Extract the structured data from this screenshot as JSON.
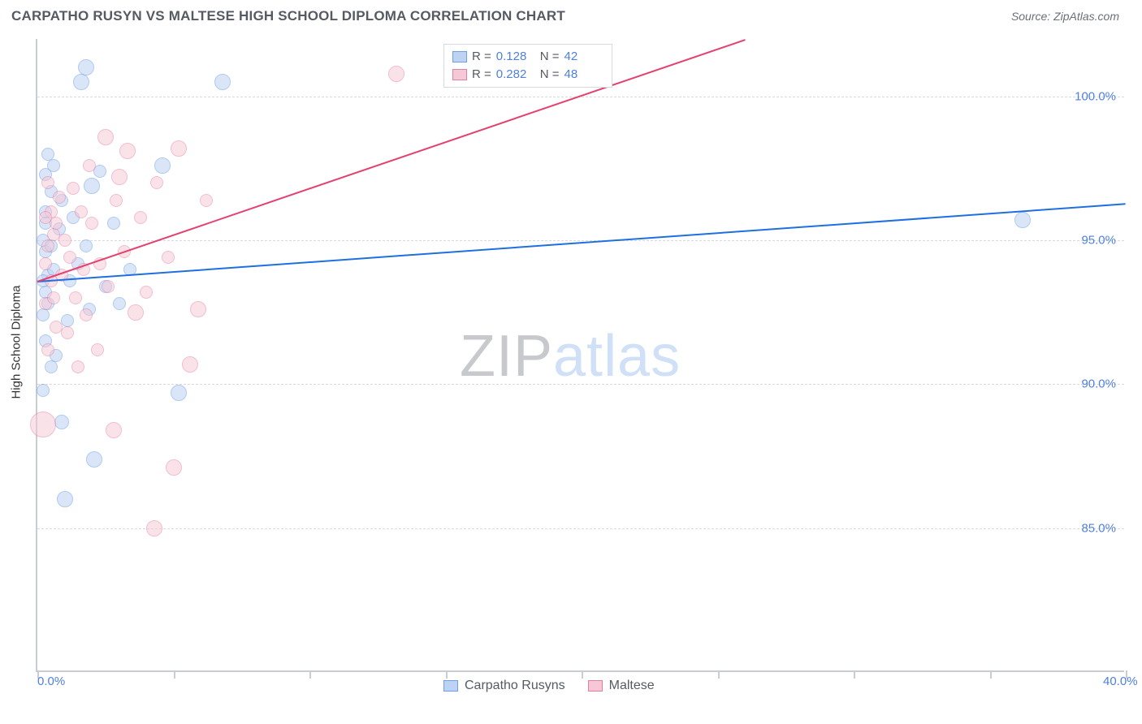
{
  "title": "CARPATHO RUSYN VS MALTESE HIGH SCHOOL DIPLOMA CORRELATION CHART",
  "source_label": "Source: ZipAtlas.com",
  "y_axis_label": "High School Diploma",
  "chart": {
    "type": "scatter",
    "x_min": 0,
    "x_max": 40,
    "y_min": 80,
    "y_max": 102,
    "background_color": "#ffffff",
    "grid_color": "#d7dade",
    "axis_color": "#c9cdd3",
    "tick_label_color": "#4f7fe0",
    "tick_fontsize": 15,
    "y_gridlines": [
      85,
      90,
      95,
      100
    ],
    "y_tick_labels": [
      "85.0%",
      "90.0%",
      "95.0%",
      "100.0%"
    ],
    "x_ticks": [
      0,
      5,
      10,
      15,
      20,
      25,
      30,
      35,
      40
    ],
    "x_tick_labels": [
      "0.0%",
      "",
      "",
      "",
      "",
      "",
      "",
      "",
      "40.0%"
    ],
    "series": [
      {
        "name": "Carpatho Rusyns",
        "fill_color": "#bcd3f3",
        "stroke_color": "#6f9fe6",
        "fill_opacity": 0.55,
        "line_color": "#1f6fe0",
        "line_width": 2,
        "R": "0.128",
        "N": "42",
        "trend": {
          "x1": 0,
          "y1": 93.6,
          "x2": 40,
          "y2": 96.3
        },
        "points": [
          {
            "x": 0.3,
            "y": 94.6,
            "r": 8
          },
          {
            "x": 0.2,
            "y": 95.0,
            "r": 8
          },
          {
            "x": 0.4,
            "y": 93.8,
            "r": 8
          },
          {
            "x": 0.3,
            "y": 93.2,
            "r": 8
          },
          {
            "x": 0.2,
            "y": 92.4,
            "r": 8
          },
          {
            "x": 0.3,
            "y": 91.5,
            "r": 8
          },
          {
            "x": 0.5,
            "y": 90.6,
            "r": 8
          },
          {
            "x": 0.2,
            "y": 89.8,
            "r": 8
          },
          {
            "x": 0.3,
            "y": 96.0,
            "r": 8
          },
          {
            "x": 0.5,
            "y": 96.7,
            "r": 8
          },
          {
            "x": 0.3,
            "y": 97.3,
            "r": 8
          },
          {
            "x": 0.4,
            "y": 98.0,
            "r": 8
          },
          {
            "x": 1.6,
            "y": 100.5,
            "r": 10
          },
          {
            "x": 1.8,
            "y": 101.0,
            "r": 10
          },
          {
            "x": 2.0,
            "y": 96.9,
            "r": 10
          },
          {
            "x": 2.3,
            "y": 97.4,
            "r": 8
          },
          {
            "x": 2.1,
            "y": 87.4,
            "r": 10
          },
          {
            "x": 1.0,
            "y": 86.0,
            "r": 10
          },
          {
            "x": 0.9,
            "y": 88.7,
            "r": 9
          },
          {
            "x": 1.2,
            "y": 93.6,
            "r": 8
          },
          {
            "x": 1.5,
            "y": 94.2,
            "r": 8
          },
          {
            "x": 1.8,
            "y": 94.8,
            "r": 8
          },
          {
            "x": 2.5,
            "y": 93.4,
            "r": 8
          },
          {
            "x": 3.0,
            "y": 92.8,
            "r": 8
          },
          {
            "x": 3.4,
            "y": 94.0,
            "r": 8
          },
          {
            "x": 1.1,
            "y": 92.2,
            "r": 8
          },
          {
            "x": 4.6,
            "y": 97.6,
            "r": 10
          },
          {
            "x": 5.2,
            "y": 89.7,
            "r": 10
          },
          {
            "x": 6.8,
            "y": 100.5,
            "r": 10
          },
          {
            "x": 36.2,
            "y": 95.7,
            "r": 10
          },
          {
            "x": 0.6,
            "y": 97.6,
            "r": 8
          },
          {
            "x": 0.8,
            "y": 95.4,
            "r": 8
          },
          {
            "x": 0.6,
            "y": 94.0,
            "r": 8
          },
          {
            "x": 0.4,
            "y": 92.8,
            "r": 8
          },
          {
            "x": 1.3,
            "y": 95.8,
            "r": 8
          },
          {
            "x": 0.3,
            "y": 95.6,
            "r": 8
          },
          {
            "x": 2.8,
            "y": 95.6,
            "r": 8
          },
          {
            "x": 0.7,
            "y": 91.0,
            "r": 8
          },
          {
            "x": 0.2,
            "y": 93.6,
            "r": 8
          },
          {
            "x": 1.9,
            "y": 92.6,
            "r": 8
          },
          {
            "x": 0.9,
            "y": 96.4,
            "r": 8
          },
          {
            "x": 0.5,
            "y": 94.8,
            "r": 8
          }
        ]
      },
      {
        "name": "Maltese",
        "fill_color": "#f6c7d5",
        "stroke_color": "#e67ea0",
        "fill_opacity": 0.5,
        "line_color": "#e4416e",
        "line_width": 2,
        "R": "0.282",
        "N": "48",
        "trend": {
          "x1": 0,
          "y1": 93.6,
          "x2": 26,
          "y2": 102
        },
        "points": [
          {
            "x": 0.3,
            "y": 94.2,
            "r": 8
          },
          {
            "x": 0.4,
            "y": 94.8,
            "r": 8
          },
          {
            "x": 0.5,
            "y": 93.6,
            "r": 8
          },
          {
            "x": 0.6,
            "y": 95.2,
            "r": 8
          },
          {
            "x": 0.3,
            "y": 92.8,
            "r": 8
          },
          {
            "x": 0.7,
            "y": 92.0,
            "r": 8
          },
          {
            "x": 0.4,
            "y": 91.2,
            "r": 8
          },
          {
            "x": 0.2,
            "y": 88.6,
            "r": 16
          },
          {
            "x": 0.8,
            "y": 96.5,
            "r": 8
          },
          {
            "x": 1.0,
            "y": 95.0,
            "r": 8
          },
          {
            "x": 1.2,
            "y": 94.4,
            "r": 8
          },
          {
            "x": 1.4,
            "y": 93.0,
            "r": 8
          },
          {
            "x": 1.6,
            "y": 96.0,
            "r": 8
          },
          {
            "x": 1.8,
            "y": 92.4,
            "r": 8
          },
          {
            "x": 2.0,
            "y": 95.6,
            "r": 8
          },
          {
            "x": 2.3,
            "y": 94.2,
            "r": 8
          },
          {
            "x": 2.6,
            "y": 93.4,
            "r": 8
          },
          {
            "x": 3.0,
            "y": 97.2,
            "r": 10
          },
          {
            "x": 3.3,
            "y": 98.1,
            "r": 10
          },
          {
            "x": 2.5,
            "y": 98.6,
            "r": 10
          },
          {
            "x": 3.6,
            "y": 92.5,
            "r": 10
          },
          {
            "x": 4.0,
            "y": 93.2,
            "r": 8
          },
          {
            "x": 4.4,
            "y": 97.0,
            "r": 8
          },
          {
            "x": 5.2,
            "y": 98.2,
            "r": 10
          },
          {
            "x": 5.6,
            "y": 90.7,
            "r": 10
          },
          {
            "x": 5.9,
            "y": 92.6,
            "r": 10
          },
          {
            "x": 5.0,
            "y": 87.1,
            "r": 10
          },
          {
            "x": 4.3,
            "y": 85.0,
            "r": 10
          },
          {
            "x": 6.2,
            "y": 96.4,
            "r": 8
          },
          {
            "x": 2.8,
            "y": 88.4,
            "r": 10
          },
          {
            "x": 13.2,
            "y": 100.8,
            "r": 10
          },
          {
            "x": 19.2,
            "y": 100.7,
            "r": 10
          },
          {
            "x": 3.8,
            "y": 95.8,
            "r": 8
          },
          {
            "x": 1.9,
            "y": 97.6,
            "r": 8
          },
          {
            "x": 0.5,
            "y": 96.0,
            "r": 8
          },
          {
            "x": 0.9,
            "y": 93.8,
            "r": 8
          },
          {
            "x": 1.1,
            "y": 91.8,
            "r": 8
          },
          {
            "x": 1.5,
            "y": 90.6,
            "r": 8
          },
          {
            "x": 3.2,
            "y": 94.6,
            "r": 8
          },
          {
            "x": 0.7,
            "y": 95.6,
            "r": 8
          },
          {
            "x": 2.2,
            "y": 91.2,
            "r": 8
          },
          {
            "x": 4.8,
            "y": 94.4,
            "r": 8
          },
          {
            "x": 0.4,
            "y": 97.0,
            "r": 8
          },
          {
            "x": 0.6,
            "y": 93.0,
            "r": 8
          },
          {
            "x": 1.3,
            "y": 96.8,
            "r": 8
          },
          {
            "x": 2.9,
            "y": 96.4,
            "r": 8
          },
          {
            "x": 1.7,
            "y": 94.0,
            "r": 8
          },
          {
            "x": 0.3,
            "y": 95.8,
            "r": 8
          }
        ]
      }
    ]
  },
  "legend_top": {
    "R_label": "R =",
    "N_label": "N ="
  },
  "legend_bottom_labels": [
    "Carpatho Rusyns",
    "Maltese"
  ],
  "watermark": {
    "part1": "ZIP",
    "part2": "atlas"
  }
}
